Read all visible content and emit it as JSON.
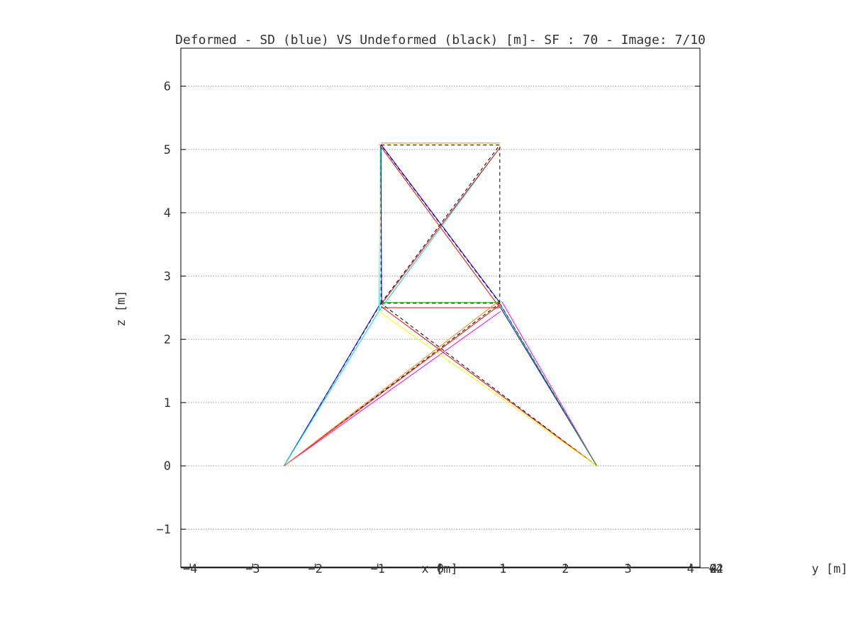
{
  "chart_data": {
    "type": "line",
    "title": "Deformed - SD (blue) VS Undeformed (black) [m]- SF : 70 - Image: 7/10",
    "xlabel": "x [m]",
    "ylabel": "z [m]",
    "y_axis_label": "y [m]",
    "xlim": [
      -4.15,
      4.15
    ],
    "ylim": [
      -1.6,
      6.6
    ],
    "x_ticks": [
      "-4",
      "-3",
      "-2",
      "-1",
      "0",
      "1",
      "2",
      "3",
      "4"
    ],
    "x_tick_values": [
      -4,
      -3,
      -2,
      -1,
      0,
      1,
      2,
      3,
      4
    ],
    "y_ticks": [
      "-1",
      "0",
      "1",
      "2",
      "3",
      "4",
      "5",
      "6"
    ],
    "y_tick_values": [
      -1,
      0,
      1,
      2,
      3,
      4,
      5,
      6
    ],
    "right_axis_ticks": [
      "-4",
      "-2",
      "0",
      "2",
      "4"
    ],
    "grid": true,
    "series": [
      {
        "style": "dashed",
        "color": "#000000",
        "segments": [
          [
            [
              -2.5,
              0
            ],
            [
              -0.95,
              2.57
            ]
          ],
          [
            [
              2.5,
              0
            ],
            [
              0.95,
              2.57
            ]
          ],
          [
            [
              -0.95,
              2.57
            ],
            [
              0.95,
              2.57
            ]
          ],
          [
            [
              -0.95,
              2.57
            ],
            [
              -0.95,
              5.07
            ]
          ],
          [
            [
              0.95,
              2.57
            ],
            [
              0.95,
              5.07
            ]
          ],
          [
            [
              -0.95,
              5.07
            ],
            [
              0.95,
              5.07
            ]
          ],
          [
            [
              -2.5,
              0
            ],
            [
              0.95,
              2.57
            ]
          ],
          [
            [
              2.5,
              0
            ],
            [
              -0.95,
              2.57
            ]
          ],
          [
            [
              -0.95,
              2.57
            ],
            [
              0.95,
              5.07
            ]
          ],
          [
            [
              0.95,
              2.57
            ],
            [
              -0.95,
              5.07
            ]
          ]
        ]
      },
      {
        "style": "solid",
        "color": "#0000ff",
        "segments": [
          [
            [
              -2.5,
              0
            ],
            [
              -0.94,
              2.6
            ]
          ],
          [
            [
              -0.94,
              2.6
            ],
            [
              -0.95,
              5.08
            ]
          ],
          [
            [
              -0.95,
              5.08
            ],
            [
              0.95,
              2.58
            ]
          ],
          [
            [
              2.5,
              0
            ],
            [
              0.95,
              2.52
            ]
          ]
        ]
      },
      {
        "style": "solid",
        "color": "#00dddd",
        "segments": [
          [
            [
              -2.5,
              0
            ],
            [
              -0.98,
              2.45
            ]
          ],
          [
            [
              -0.98,
              2.45
            ],
            [
              0.96,
              5.04
            ]
          ],
          [
            [
              -0.98,
              2.45
            ],
            [
              -0.96,
              5.06
            ]
          ]
        ]
      },
      {
        "style": "solid",
        "color": "#ff0000",
        "segments": [
          [
            [
              -2.5,
              0
            ],
            [
              0.96,
              2.55
            ]
          ],
          [
            [
              -0.95,
              2.55
            ],
            [
              0.96,
              5.04
            ]
          ],
          [
            [
              -0.98,
              5.08
            ],
            [
              0.95,
              2.5
            ]
          ],
          [
            [
              2.5,
              0
            ],
            [
              -0.95,
              2.52
            ]
          ],
          [
            [
              -0.94,
              2.5
            ],
            [
              0.94,
              2.5
            ]
          ]
        ]
      },
      {
        "style": "solid",
        "color": "#ff00ff",
        "segments": [
          [
            [
              -2.5,
              0
            ],
            [
              0.96,
              2.44
            ]
          ],
          [
            [
              2.5,
              0
            ],
            [
              0.98,
              2.6
            ]
          ]
        ]
      },
      {
        "style": "solid",
        "color": "#ffff00",
        "segments": [
          [
            [
              -1.0,
              2.45
            ],
            [
              2.5,
              0
            ]
          ],
          [
            [
              -0.95,
              5.1
            ],
            [
              0.95,
              5.1
            ]
          ],
          [
            [
              -0.97,
              2.5
            ],
            [
              -0.97,
              5.1
            ]
          ]
        ]
      },
      {
        "style": "solid",
        "color": "#00aa00",
        "segments": [
          [
            [
              0.95,
              2.56
            ],
            [
              2.5,
              0
            ]
          ],
          [
            [
              -0.96,
              2.58
            ],
            [
              0.96,
              2.58
            ]
          ]
        ]
      },
      {
        "style": "solid",
        "color": "#ff8800",
        "segments": [
          [
            [
              -2.5,
              0
            ],
            [
              0.93,
              2.6
            ]
          ],
          [
            [
              0.95,
              5.1
            ],
            [
              -0.95,
              5.1
            ]
          ]
        ]
      }
    ]
  }
}
